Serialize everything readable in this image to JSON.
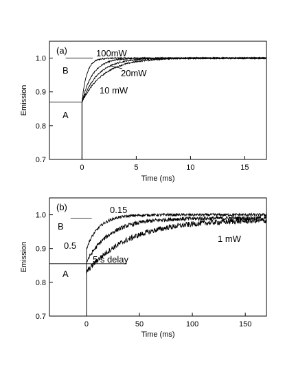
{
  "chart_data": [
    {
      "type": "line",
      "panel_label": "(a)",
      "xlabel": "Time (ms)",
      "ylabel": "Emission",
      "xlim": [
        -3,
        17
      ],
      "ylim": [
        0.7,
        1.05
      ],
      "xticks": [
        0,
        5,
        10,
        15
      ],
      "yticks": [
        0.7,
        0.8,
        0.9,
        1.0
      ],
      "xtick_labels": [
        "0",
        "5",
        "10",
        "15"
      ],
      "ytick_labels": [
        "0.7",
        "0.8",
        "0.9",
        "1.0"
      ],
      "grid": false,
      "series": [
        {
          "name": "100mW",
          "start": 0.87,
          "plateau": 1.0,
          "tau": 0.45,
          "noise": 0.002
        },
        {
          "name": "",
          "start": 0.87,
          "plateau": 1.0,
          "tau": 1.0,
          "noise": 0.002
        },
        {
          "name": "20mW",
          "start": 0.87,
          "plateau": 1.0,
          "tau": 1.5,
          "noise": 0.002
        },
        {
          "name": "10 mW",
          "start": 0.87,
          "plateau": 1.0,
          "tau": 2.0,
          "noise": 0.002
        }
      ],
      "annotations": [
        {
          "text": "A",
          "level": 0.87,
          "line_x": [
            -3,
            0
          ]
        },
        {
          "text": "B",
          "level": 1.0,
          "line_x": [
            -1.5,
            1.0
          ]
        },
        {
          "text": "100mW"
        },
        {
          "text": "20mW"
        },
        {
          "text": "10 mW"
        }
      ]
    },
    {
      "type": "line",
      "panel_label": "(b)",
      "xlabel": "Time (ms)",
      "ylabel": "Emission",
      "xlim": [
        -35,
        170
      ],
      "ylim": [
        0.7,
        1.05
      ],
      "xticks": [
        0,
        50,
        100,
        150
      ],
      "yticks": [
        0.7,
        0.8,
        0.9,
        1.0
      ],
      "xtick_labels": [
        "0",
        "50",
        "100",
        "150"
      ],
      "ytick_labels": [
        "0.7",
        "0.8",
        "0.9",
        "1.0"
      ],
      "grid": false,
      "series": [
        {
          "name": "0.15",
          "start": 0.9,
          "plateau": 1.0,
          "tau": 12,
          "noise": 0.004
        },
        {
          "name": "0.5",
          "start": 0.86,
          "plateau": 0.99,
          "tau": 22,
          "noise": 0.006
        },
        {
          "name": "1 mW",
          "start": 0.83,
          "plateau": 0.985,
          "tau": 40,
          "noise": 0.008
        }
      ],
      "annotations": [
        {
          "text": "A",
          "level": 0.855,
          "line_x": [
            -35,
            38
          ]
        },
        {
          "text": "B",
          "level": 0.99,
          "line_x": [
            -15,
            5
          ]
        },
        {
          "text": "0.15"
        },
        {
          "text": "0.5"
        },
        {
          "text": "1 mW"
        },
        {
          "text": "5 s delay"
        }
      ]
    }
  ]
}
